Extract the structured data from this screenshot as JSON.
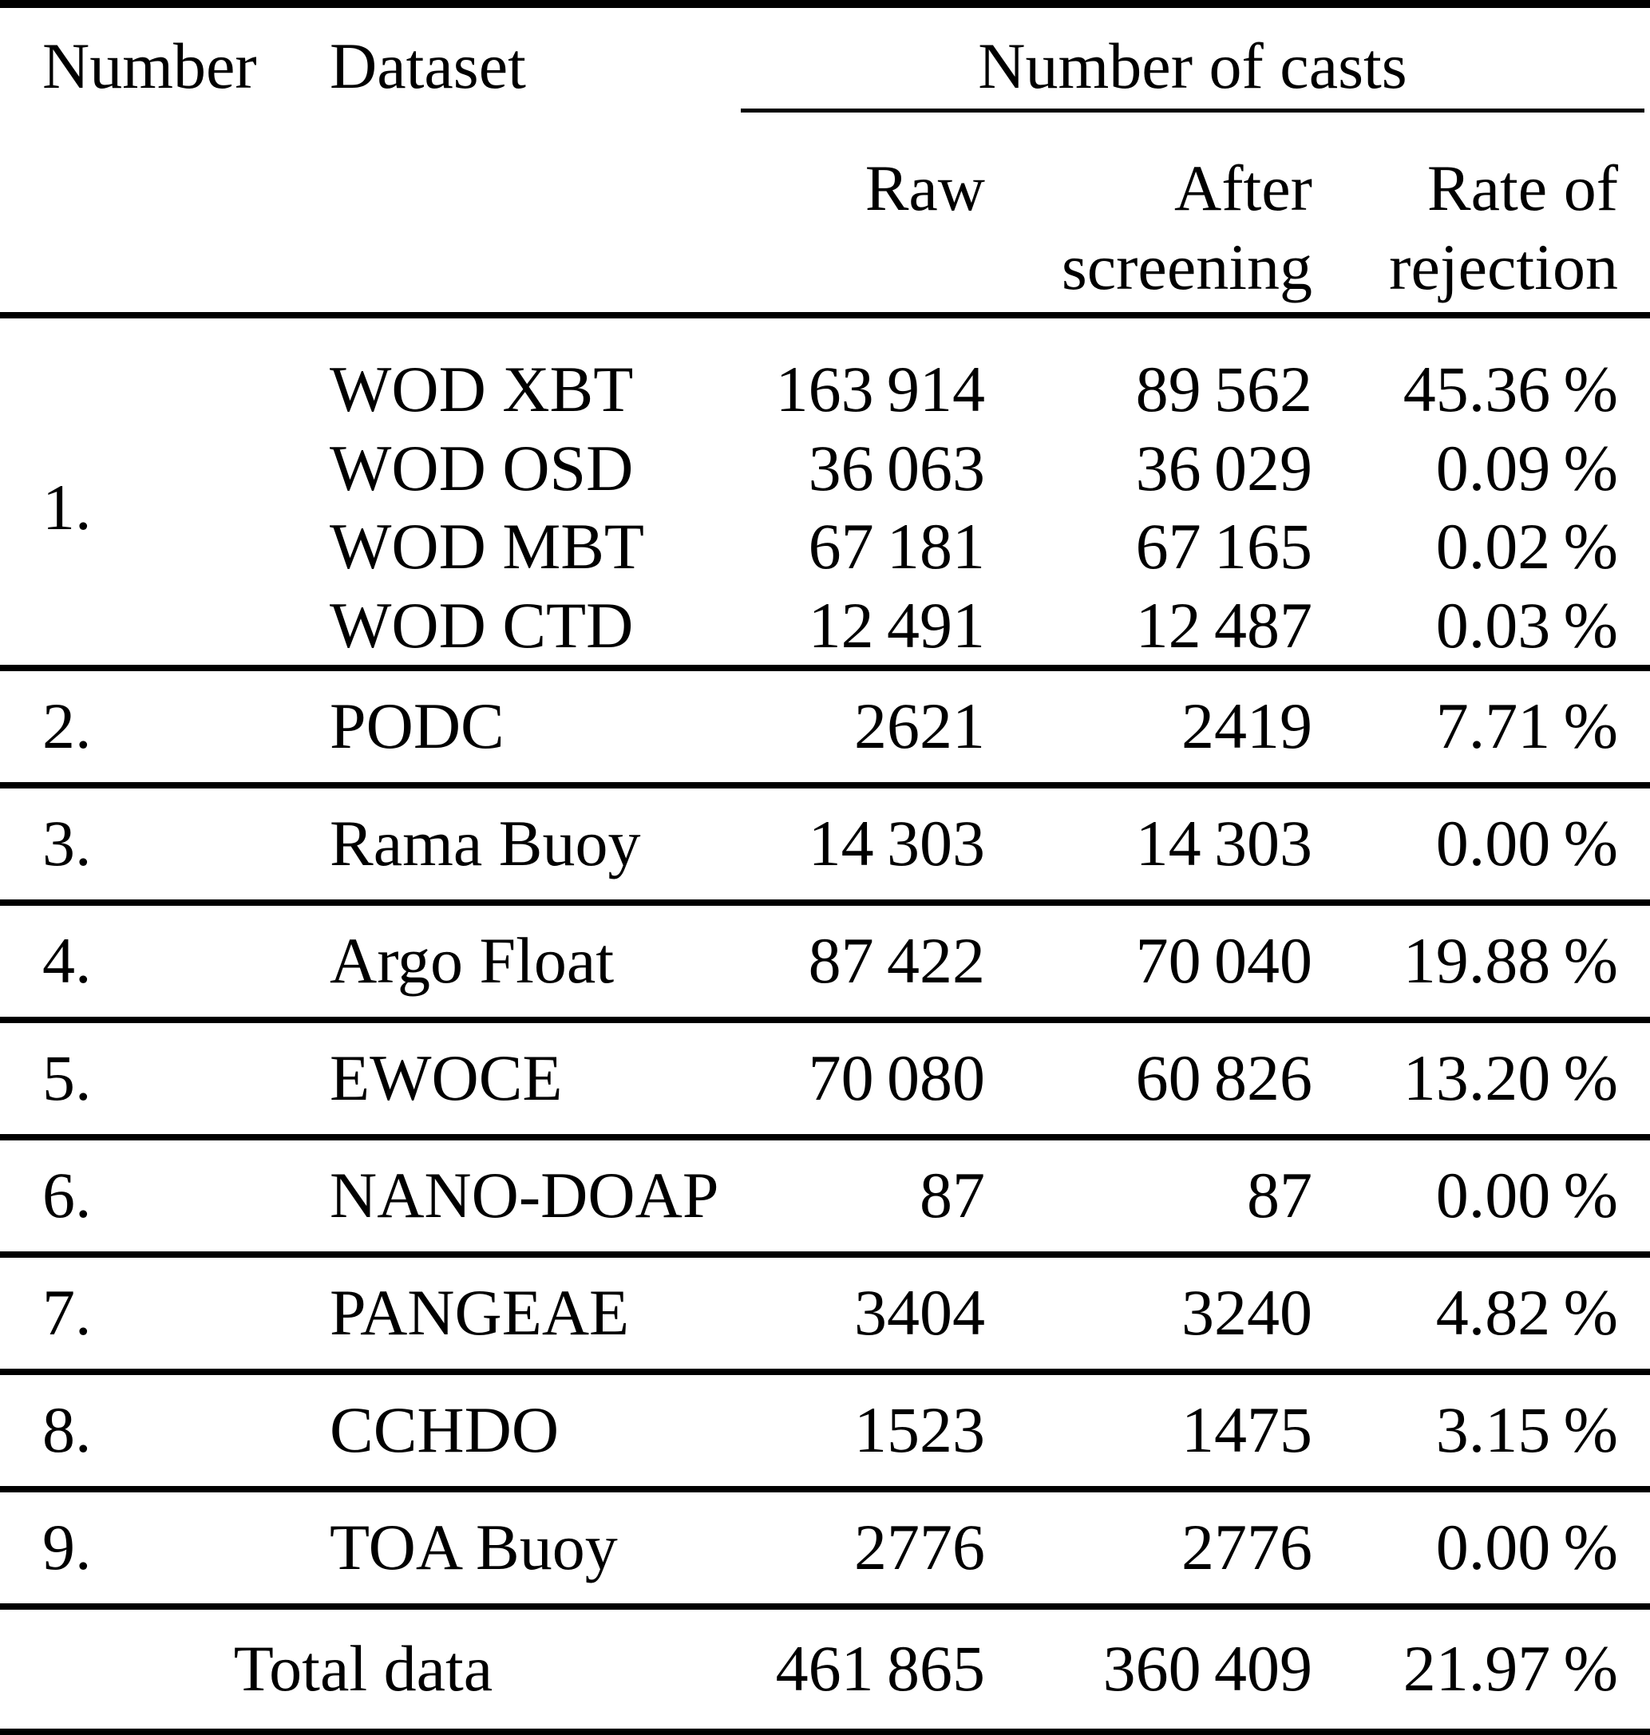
{
  "table": {
    "header": {
      "number": "Number",
      "dataset": "Dataset",
      "casts_group": "Number of casts",
      "raw": "Raw",
      "after_lines": [
        "After",
        "screening"
      ],
      "rate_lines": [
        "Rate of",
        "rejection"
      ]
    },
    "groups": [
      {
        "number": "1.",
        "rows": [
          {
            "dataset": "WOD XBT",
            "raw": "163 914",
            "after": "89 562",
            "rate": "45.36 %"
          },
          {
            "dataset": "WOD OSD",
            "raw": "36 063",
            "after": "36 029",
            "rate": "0.09 %"
          },
          {
            "dataset": "WOD MBT",
            "raw": "67 181",
            "after": "67 165",
            "rate": "0.02 %"
          },
          {
            "dataset": "WOD CTD",
            "raw": "12 491",
            "after": "12 487",
            "rate": "0.03 %"
          }
        ]
      },
      {
        "number": "2.",
        "rows": [
          {
            "dataset": "PODC",
            "raw": "2621",
            "after": "2419",
            "rate": "7.71 %"
          }
        ]
      },
      {
        "number": "3.",
        "rows": [
          {
            "dataset": "Rama Buoy",
            "raw": "14 303",
            "after": "14 303",
            "rate": "0.00 %"
          }
        ]
      },
      {
        "number": "4.",
        "rows": [
          {
            "dataset": "Argo Float",
            "raw": "87 422",
            "after": "70 040",
            "rate": "19.88 %"
          }
        ]
      },
      {
        "number": "5.",
        "rows": [
          {
            "dataset": "EWOCE",
            "raw": "70 080",
            "after": "60 826",
            "rate": "13.20 %"
          }
        ]
      },
      {
        "number": "6.",
        "rows": [
          {
            "dataset": "NANO-DOAP",
            "raw": "87",
            "after": "87",
            "rate": "0.00 %"
          }
        ]
      },
      {
        "number": "7.",
        "rows": [
          {
            "dataset": "PANGEAE",
            "raw": "3404",
            "after": "3240",
            "rate": "4.82 %"
          }
        ]
      },
      {
        "number": "8.",
        "rows": [
          {
            "dataset": "CCHDO",
            "raw": "1523",
            "after": "1475",
            "rate": "3.15 %"
          }
        ]
      },
      {
        "number": "9.",
        "rows": [
          {
            "dataset": "TOA Buoy",
            "raw": "2776",
            "after": "2776",
            "rate": "0.00 %"
          }
        ]
      }
    ],
    "total": {
      "label": "Total data",
      "raw": "461 865",
      "after": "360 409",
      "rate": "21.97 %"
    }
  }
}
